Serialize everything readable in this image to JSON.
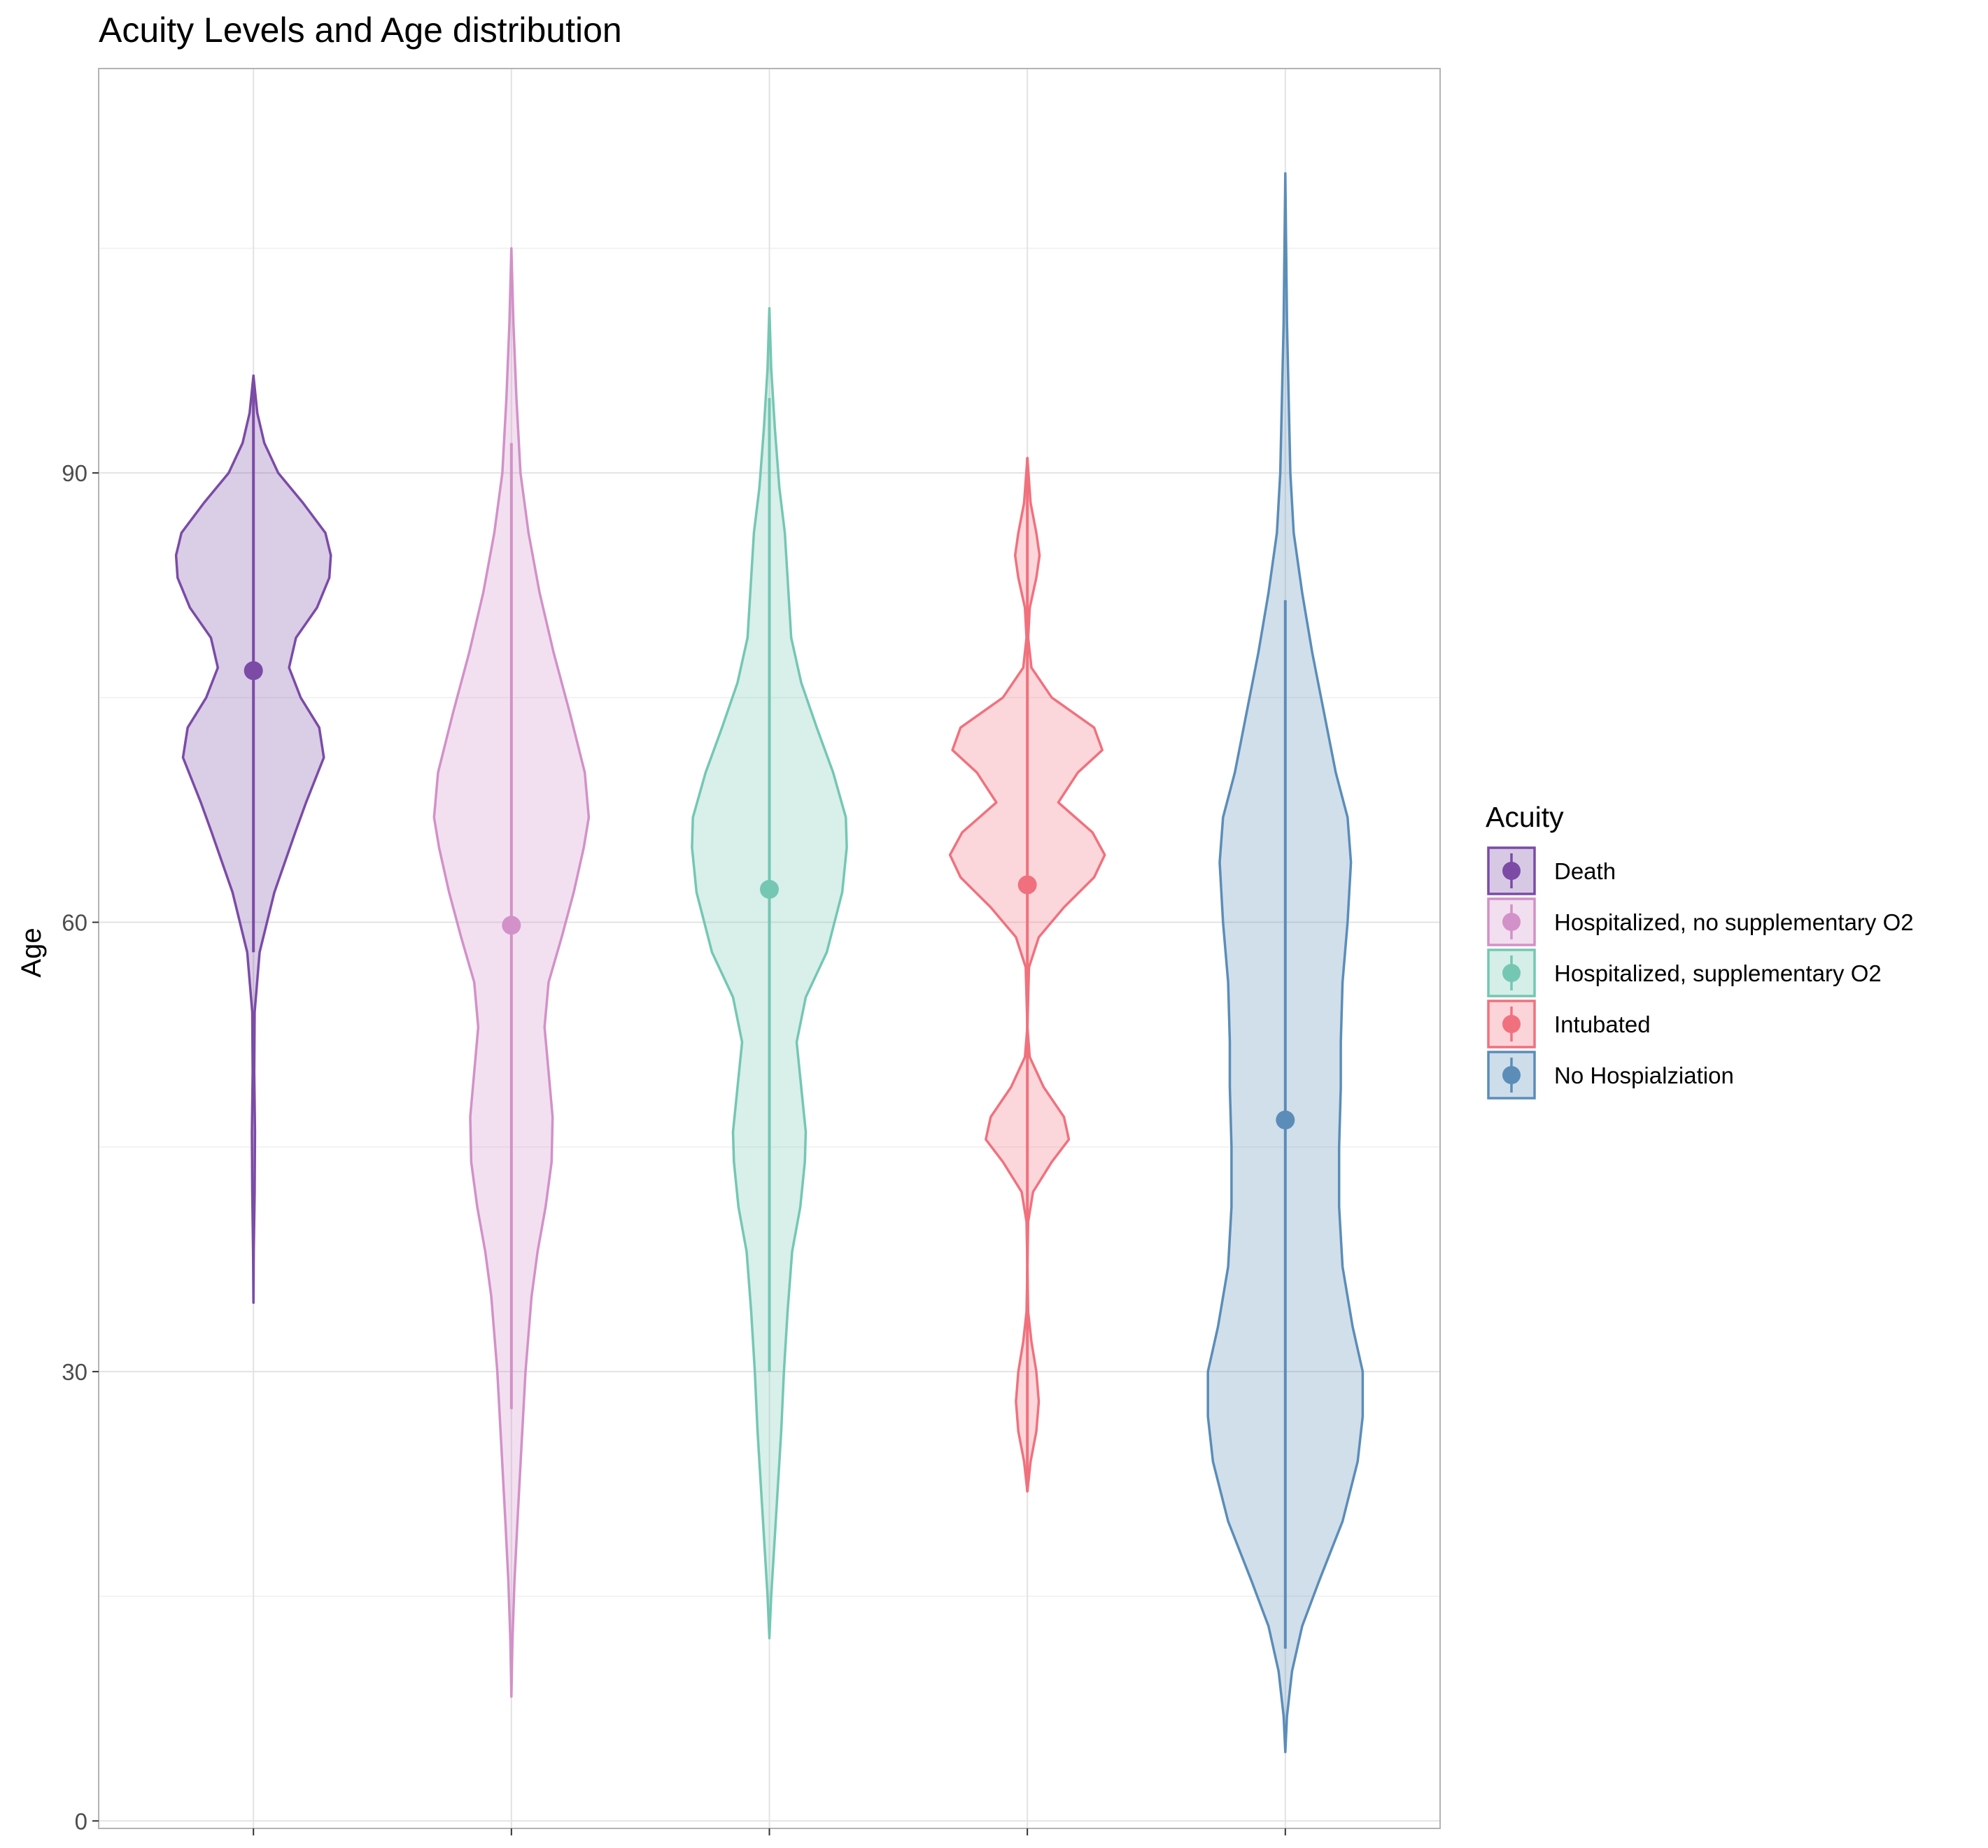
{
  "chart_data": {
    "type": "violin",
    "title": "Acuity Levels and Age distribution",
    "xlabel": "",
    "ylabel": "Age",
    "ylim": [
      -0.5,
      117
    ],
    "yticks": [
      0,
      30,
      60,
      90
    ],
    "grid": true,
    "legend": {
      "title": "Acuity",
      "position": "right"
    },
    "categories": [
      "Death",
      "Hospitalized,  no supplementary O2",
      "Hospitalized, supplementary O2",
      "Intubated",
      "No Hospialziation"
    ],
    "series": [
      {
        "name": "Death",
        "color": "#7B4BA6",
        "mean": 76.8,
        "range": [
          34.6,
          96.5
        ],
        "line_range": [
          58,
          96
        ],
        "density": [
          [
            34.6,
            0
          ],
          [
            38,
            0.004
          ],
          [
            42,
            0.015
          ],
          [
            46,
            0.02
          ],
          [
            50,
            0.01
          ],
          [
            54,
            0.015
          ],
          [
            58,
            0.08
          ],
          [
            62,
            0.27
          ],
          [
            66,
            0.54
          ],
          [
            68,
            0.68
          ],
          [
            71,
            0.91
          ],
          [
            73,
            0.85
          ],
          [
            75,
            0.61
          ],
          [
            77,
            0.46
          ],
          [
            79,
            0.55
          ],
          [
            81,
            0.82
          ],
          [
            83,
            0.98
          ],
          [
            84.5,
            1.0
          ],
          [
            86,
            0.93
          ],
          [
            88,
            0.64
          ],
          [
            90,
            0.32
          ],
          [
            92,
            0.14
          ],
          [
            94,
            0.05
          ],
          [
            96.5,
            0
          ]
        ]
      },
      {
        "name": "Hospitalized,  no supplementary O2",
        "color": "#D291C8",
        "mean": 59.8,
        "range": [
          8.3,
          105
        ],
        "line_range": [
          27.5,
          92
        ],
        "density": [
          [
            8.3,
            0
          ],
          [
            12,
            0.01
          ],
          [
            16,
            0.03
          ],
          [
            20,
            0.06
          ],
          [
            25,
            0.1
          ],
          [
            30,
            0.14
          ],
          [
            35,
            0.2
          ],
          [
            38,
            0.26
          ],
          [
            41,
            0.34
          ],
          [
            44,
            0.4
          ],
          [
            47,
            0.41
          ],
          [
            50,
            0.37
          ],
          [
            53,
            0.33
          ],
          [
            56,
            0.37
          ],
          [
            59,
            0.5
          ],
          [
            62,
            0.62
          ],
          [
            65,
            0.72
          ],
          [
            67,
            0.77
          ],
          [
            70,
            0.73
          ],
          [
            74,
            0.58
          ],
          [
            78,
            0.42
          ],
          [
            82,
            0.28
          ],
          [
            86,
            0.17
          ],
          [
            90,
            0.09
          ],
          [
            95,
            0.05
          ],
          [
            100,
            0.02
          ],
          [
            105,
            0
          ]
        ]
      },
      {
        "name": "Hospitalized, supplementary O2",
        "color": "#74C7B3",
        "mean": 62.2,
        "range": [
          12.2,
          101
        ],
        "line_range": [
          30,
          95
        ],
        "density": [
          [
            12.2,
            0
          ],
          [
            15,
            0.02
          ],
          [
            18,
            0.05
          ],
          [
            22,
            0.09
          ],
          [
            26,
            0.13
          ],
          [
            30,
            0.16
          ],
          [
            34,
            0.2
          ],
          [
            38,
            0.25
          ],
          [
            41,
            0.34
          ],
          [
            44,
            0.39
          ],
          [
            46,
            0.4
          ],
          [
            49,
            0.35
          ],
          [
            52,
            0.3
          ],
          [
            55,
            0.4
          ],
          [
            58,
            0.63
          ],
          [
            62,
            0.8
          ],
          [
            65,
            0.85
          ],
          [
            67,
            0.84
          ],
          [
            70,
            0.7
          ],
          [
            73,
            0.52
          ],
          [
            76,
            0.35
          ],
          [
            79,
            0.24
          ],
          [
            83,
            0.2
          ],
          [
            86,
            0.17
          ],
          [
            89,
            0.11
          ],
          [
            93,
            0.06
          ],
          [
            97,
            0.02
          ],
          [
            101,
            0
          ]
        ]
      },
      {
        "name": "Intubated",
        "color": "#F0717D",
        "mean": 62.5,
        "range": [
          22,
          91
        ],
        "line_range": [
          22,
          91
        ],
        "density": [
          [
            22,
            0
          ],
          [
            24,
            0.04
          ],
          [
            26,
            0.11
          ],
          [
            28,
            0.14
          ],
          [
            30,
            0.11
          ],
          [
            32,
            0.05
          ],
          [
            34,
            0.01
          ],
          [
            37,
            0
          ],
          [
            40,
            0.01
          ],
          [
            42,
            0.07
          ],
          [
            44,
            0.3
          ],
          [
            45.5,
            0.51
          ],
          [
            47,
            0.45
          ],
          [
            49,
            0.2
          ],
          [
            51,
            0.03
          ],
          [
            53,
            0
          ],
          [
            57,
            0.02
          ],
          [
            59,
            0.14
          ],
          [
            61,
            0.45
          ],
          [
            63,
            0.82
          ],
          [
            64.5,
            0.95
          ],
          [
            66,
            0.8
          ],
          [
            68,
            0.38
          ],
          [
            70,
            0.62
          ],
          [
            71.5,
            0.92
          ],
          [
            73,
            0.82
          ],
          [
            75,
            0.3
          ],
          [
            77,
            0.05
          ],
          [
            79,
            0.01
          ],
          [
            81,
            0.03
          ],
          [
            83,
            0.11
          ],
          [
            84.5,
            0.15
          ],
          [
            86,
            0.11
          ],
          [
            88,
            0.04
          ],
          [
            91,
            0
          ]
        ]
      },
      {
        "name": "No Hospialziation",
        "color": "#5B8DB8",
        "mean": 46.8,
        "range": [
          4.6,
          110
        ],
        "line_range": [
          11.5,
          81.5
        ],
        "density": [
          [
            4.6,
            0
          ],
          [
            7,
            0.01
          ],
          [
            10,
            0.04
          ],
          [
            13,
            0.1
          ],
          [
            16,
            0.2
          ],
          [
            20,
            0.34
          ],
          [
            24,
            0.43
          ],
          [
            27,
            0.46
          ],
          [
            30,
            0.46
          ],
          [
            33,
            0.4
          ],
          [
            37,
            0.34
          ],
          [
            41,
            0.32
          ],
          [
            45,
            0.32
          ],
          [
            49,
            0.33
          ],
          [
            52,
            0.33
          ],
          [
            56,
            0.34
          ],
          [
            60,
            0.37
          ],
          [
            64,
            0.39
          ],
          [
            67,
            0.37
          ],
          [
            70,
            0.3
          ],
          [
            74,
            0.23
          ],
          [
            78,
            0.16
          ],
          [
            82,
            0.1
          ],
          [
            86,
            0.05
          ],
          [
            90,
            0.03
          ],
          [
            95,
            0.02
          ],
          [
            100,
            0.01
          ],
          [
            105,
            0.005
          ],
          [
            110,
            0
          ]
        ]
      }
    ]
  }
}
